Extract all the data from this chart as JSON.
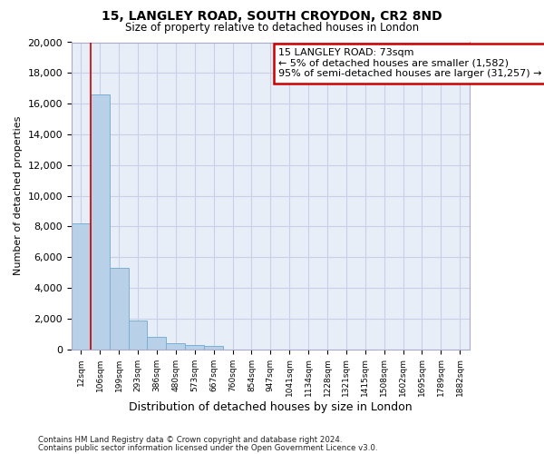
{
  "title1": "15, LANGLEY ROAD, SOUTH CROYDON, CR2 8ND",
  "title2": "Size of property relative to detached houses in London",
  "xlabel": "Distribution of detached houses by size in London",
  "ylabel": "Number of detached properties",
  "categories": [
    "12sqm",
    "106sqm",
    "199sqm",
    "293sqm",
    "386sqm",
    "480sqm",
    "573sqm",
    "667sqm",
    "760sqm",
    "854sqm",
    "947sqm",
    "1041sqm",
    "1134sqm",
    "1228sqm",
    "1321sqm",
    "1415sqm",
    "1508sqm",
    "1602sqm",
    "1695sqm",
    "1789sqm",
    "1882sqm"
  ],
  "values": [
    8200,
    16600,
    5300,
    1850,
    800,
    380,
    290,
    230,
    0,
    0,
    0,
    0,
    0,
    0,
    0,
    0,
    0,
    0,
    0,
    0,
    0
  ],
  "bar_color": "#b8d0e8",
  "bar_edge_color": "#7aafd4",
  "annotation_box_color": "#cc0000",
  "annotation_line1": "15 LANGLEY ROAD: 73sqm",
  "annotation_line2": "← 5% of detached houses are smaller (1,582)",
  "annotation_line3": "95% of semi-detached houses are larger (31,257) →",
  "vline_x": 0.5,
  "ylim": [
    0,
    20000
  ],
  "yticks": [
    0,
    2000,
    4000,
    6000,
    8000,
    10000,
    12000,
    14000,
    16000,
    18000,
    20000
  ],
  "grid_color": "#c8d0e8",
  "bg_color": "#e8eef8",
  "footer1": "Contains HM Land Registry data © Crown copyright and database right 2024.",
  "footer2": "Contains public sector information licensed under the Open Government Licence v3.0."
}
